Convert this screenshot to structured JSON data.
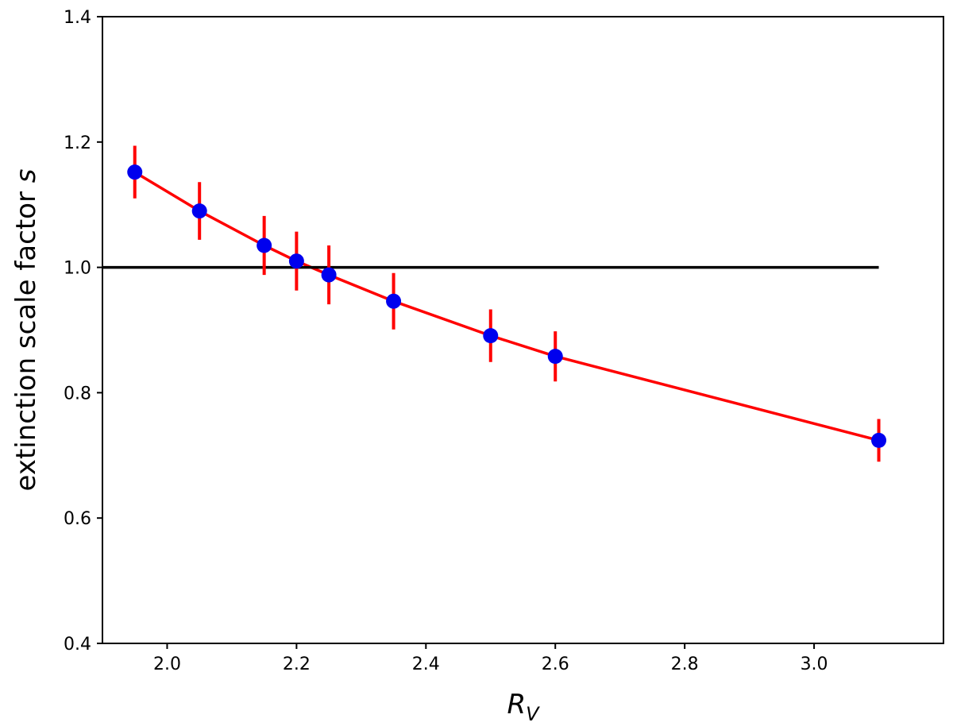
{
  "chart_data": {
    "type": "scatter",
    "xlabel_main": "R",
    "xlabel_sub": "V",
    "ylabel_text": "extinction scale factor ",
    "ylabel_var": "s",
    "xlim": [
      1.9,
      3.2
    ],
    "ylim": [
      0.4,
      1.4
    ],
    "x_ticks": [
      2.0,
      2.2,
      2.4,
      2.6,
      2.8,
      3.0
    ],
    "x_tick_labels": [
      "2.0",
      "2.2",
      "2.4",
      "2.6",
      "2.8",
      "3.0"
    ],
    "y_ticks": [
      0.4,
      0.6,
      0.8,
      1.0,
      1.2,
      1.4
    ],
    "y_tick_labels": [
      "0.4",
      "0.6",
      "0.8",
      "1.0",
      "1.2",
      "1.4"
    ],
    "grid": false,
    "reference_line": {
      "y": 1.0,
      "x_from": 1.9,
      "x_to": 3.1,
      "color": "#000000"
    },
    "points": [
      {
        "x": 1.95,
        "y": 1.152,
        "err": 0.042
      },
      {
        "x": 2.05,
        "y": 1.09,
        "err": 0.046
      },
      {
        "x": 2.15,
        "y": 1.035,
        "err": 0.047
      },
      {
        "x": 2.2,
        "y": 1.01,
        "err": 0.047
      },
      {
        "x": 2.25,
        "y": 0.988,
        "err": 0.047
      },
      {
        "x": 2.35,
        "y": 0.946,
        "err": 0.045
      },
      {
        "x": 2.5,
        "y": 0.891,
        "err": 0.042
      },
      {
        "x": 2.6,
        "y": 0.858,
        "err": 0.04
      },
      {
        "x": 3.1,
        "y": 0.724,
        "err": 0.034
      }
    ],
    "fit_curve": [
      [
        1.95,
        1.152
      ],
      [
        2.05,
        1.09
      ],
      [
        2.15,
        1.035
      ],
      [
        2.2,
        1.01
      ],
      [
        2.25,
        0.988
      ],
      [
        2.35,
        0.946
      ],
      [
        2.5,
        0.891
      ],
      [
        2.6,
        0.858
      ],
      [
        3.1,
        0.724
      ]
    ],
    "colors": {
      "marker": "#0000ee",
      "errorbar": "#ff0000",
      "fit": "#ff0000",
      "axis": "#000000"
    }
  }
}
